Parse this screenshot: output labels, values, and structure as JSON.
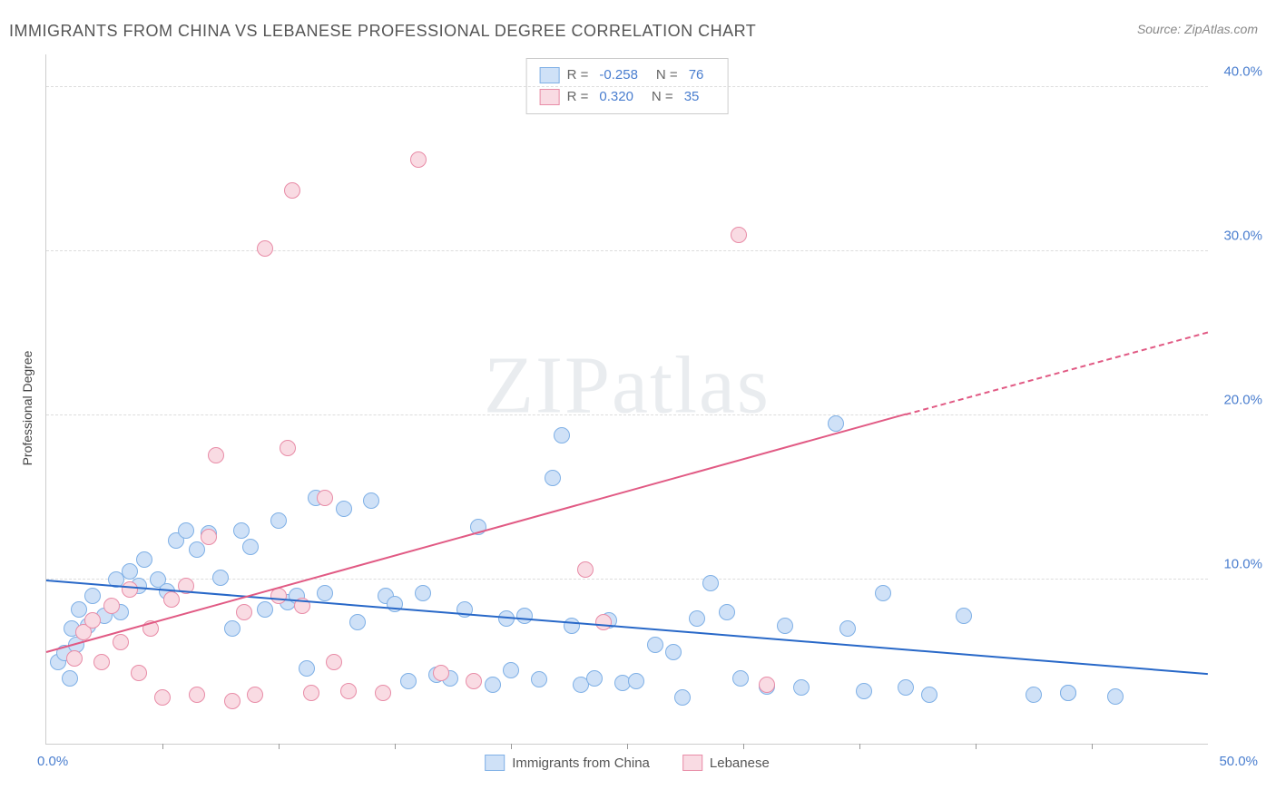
{
  "title": "IMMIGRANTS FROM CHINA VS LEBANESE PROFESSIONAL DEGREE CORRELATION CHART",
  "source": "Source: ZipAtlas.com",
  "ylabel": "Professional Degree",
  "watermark_a": "ZIP",
  "watermark_b": "atlas",
  "chart": {
    "type": "scatter",
    "xlim": [
      0,
      50
    ],
    "ylim": [
      0,
      42
    ],
    "xtick_labels": {
      "min": "0.0%",
      "max": "50.0%"
    },
    "ytick_positions": [
      10,
      20,
      30,
      40
    ],
    "ytick_labels": [
      "10.0%",
      "20.0%",
      "30.0%",
      "40.0%"
    ],
    "xtick_count": 10,
    "background_color": "#ffffff",
    "grid_color": "#dddddd",
    "series": [
      {
        "name": "Immigrants from China",
        "marker_fill": "#cfe1f7",
        "marker_stroke": "#7fb0e6",
        "marker_size": 16,
        "line_color": "#2868c8",
        "reg": {
          "x1": 0,
          "y1": 9.9,
          "x2": 50,
          "y2": 4.2
        },
        "R": "-0.258",
        "N": "76",
        "points": [
          [
            0.5,
            5.0
          ],
          [
            0.8,
            5.5
          ],
          [
            1.0,
            4.0
          ],
          [
            1.1,
            7.0
          ],
          [
            1.3,
            6.0
          ],
          [
            1.4,
            8.2
          ],
          [
            1.8,
            7.2
          ],
          [
            2.0,
            9.0
          ],
          [
            2.5,
            7.8
          ],
          [
            3.0,
            10.0
          ],
          [
            3.2,
            8.0
          ],
          [
            3.6,
            10.5
          ],
          [
            4.0,
            9.6
          ],
          [
            4.2,
            11.2
          ],
          [
            4.8,
            10.0
          ],
          [
            5.2,
            9.3
          ],
          [
            5.6,
            12.4
          ],
          [
            6.0,
            13.0
          ],
          [
            6.5,
            11.8
          ],
          [
            7.0,
            12.8
          ],
          [
            7.5,
            10.1
          ],
          [
            8.0,
            7.0
          ],
          [
            8.4,
            13.0
          ],
          [
            8.8,
            12.0
          ],
          [
            9.4,
            8.2
          ],
          [
            10.0,
            13.6
          ],
          [
            10.4,
            8.6
          ],
          [
            10.8,
            9.0
          ],
          [
            11.2,
            4.6
          ],
          [
            11.6,
            15.0
          ],
          [
            12.0,
            9.2
          ],
          [
            12.8,
            14.3
          ],
          [
            13.4,
            7.4
          ],
          [
            14.0,
            14.8
          ],
          [
            14.6,
            9.0
          ],
          [
            15.0,
            8.5
          ],
          [
            15.6,
            3.8
          ],
          [
            16.2,
            9.2
          ],
          [
            16.8,
            4.2
          ],
          [
            17.4,
            4.0
          ],
          [
            18.0,
            8.2
          ],
          [
            18.6,
            13.2
          ],
          [
            19.2,
            3.6
          ],
          [
            19.8,
            7.6
          ],
          [
            20.0,
            4.5
          ],
          [
            20.6,
            7.8
          ],
          [
            21.2,
            3.9
          ],
          [
            21.8,
            16.2
          ],
          [
            22.2,
            18.8
          ],
          [
            22.6,
            7.2
          ],
          [
            23.0,
            3.6
          ],
          [
            23.6,
            4.0
          ],
          [
            24.2,
            7.5
          ],
          [
            24.8,
            3.7
          ],
          [
            25.4,
            3.8
          ],
          [
            26.2,
            6.0
          ],
          [
            27.0,
            5.6
          ],
          [
            27.4,
            2.8
          ],
          [
            28.0,
            7.6
          ],
          [
            28.6,
            9.8
          ],
          [
            29.3,
            8.0
          ],
          [
            29.9,
            4.0
          ],
          [
            31.0,
            3.5
          ],
          [
            31.8,
            7.2
          ],
          [
            32.5,
            3.4
          ],
          [
            34.0,
            19.5
          ],
          [
            34.5,
            7.0
          ],
          [
            35.2,
            3.2
          ],
          [
            36.0,
            9.2
          ],
          [
            37.0,
            3.4
          ],
          [
            38.0,
            3.0
          ],
          [
            39.5,
            7.8
          ],
          [
            42.5,
            3.0
          ],
          [
            44.0,
            3.1
          ],
          [
            46.0,
            2.9
          ],
          [
            44.0,
            3.1
          ]
        ]
      },
      {
        "name": "Lebanese",
        "marker_fill": "#f9dbe3",
        "marker_stroke": "#e88ca7",
        "marker_size": 16,
        "line_color": "#e15a84",
        "reg": {
          "x1": 0,
          "y1": 5.5,
          "x2": 37,
          "y2": 20.0
        },
        "reg_dash": {
          "x1": 37,
          "y1": 20.0,
          "x2": 50,
          "y2": 25.0
        },
        "R": "0.320",
        "N": "35",
        "points": [
          [
            1.2,
            5.2
          ],
          [
            1.6,
            6.8
          ],
          [
            2.0,
            7.5
          ],
          [
            2.4,
            5.0
          ],
          [
            2.8,
            8.4
          ],
          [
            3.2,
            6.2
          ],
          [
            3.6,
            9.4
          ],
          [
            4.0,
            4.3
          ],
          [
            4.5,
            7.0
          ],
          [
            5.0,
            2.8
          ],
          [
            5.4,
            8.8
          ],
          [
            6.0,
            9.6
          ],
          [
            6.5,
            3.0
          ],
          [
            7.0,
            12.6
          ],
          [
            7.3,
            17.6
          ],
          [
            8.0,
            2.6
          ],
          [
            8.5,
            8.0
          ],
          [
            9.0,
            3.0
          ],
          [
            9.4,
            30.2
          ],
          [
            10.0,
            9.0
          ],
          [
            10.4,
            18.0
          ],
          [
            10.6,
            33.7
          ],
          [
            11.0,
            8.4
          ],
          [
            11.4,
            3.1
          ],
          [
            12.0,
            15.0
          ],
          [
            12.4,
            5.0
          ],
          [
            13.0,
            3.2
          ],
          [
            14.5,
            3.1
          ],
          [
            16.0,
            35.6
          ],
          [
            17.0,
            4.3
          ],
          [
            18.4,
            3.8
          ],
          [
            23.2,
            10.6
          ],
          [
            24.0,
            7.4
          ],
          [
            29.8,
            31.0
          ],
          [
            31.0,
            3.6
          ]
        ]
      }
    ]
  },
  "legend_top": {
    "r_label": "R =",
    "n_label": "N ="
  },
  "legend_bottom": {
    "label_a": "Immigrants from China",
    "label_b": "Lebanese"
  }
}
